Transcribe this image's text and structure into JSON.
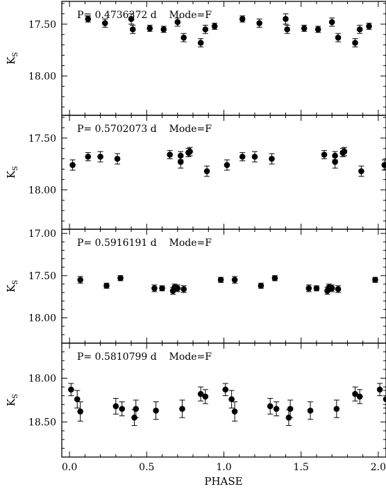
{
  "chart_data": [
    {
      "type": "scatter",
      "annotation": "P= 0.4736372 d    Mode=F",
      "ylabel": "K",
      "ylabel_sub": "S",
      "ylim": [
        18.38,
        17.28
      ],
      "yticks": [
        17.5,
        18.0
      ],
      "ytick_labels": [
        "17.50",
        "18.00"
      ],
      "xlim": [
        -0.05,
        2.05
      ],
      "phase": [
        0.12,
        0.23,
        0.4,
        0.41,
        0.52,
        0.61,
        0.7,
        0.74,
        0.85,
        0.88,
        0.94,
        1.12,
        1.23,
        1.4,
        1.41,
        1.52,
        1.61,
        1.7,
        1.74,
        1.85,
        1.88,
        1.94
      ],
      "values": [
        17.45,
        17.49,
        17.45,
        17.55,
        17.54,
        17.55,
        17.48,
        17.63,
        17.68,
        17.55,
        17.52,
        17.45,
        17.49,
        17.45,
        17.55,
        17.54,
        17.55,
        17.48,
        17.63,
        17.68,
        17.55,
        17.52
      ],
      "errors": [
        0.03,
        0.04,
        0.05,
        0.04,
        0.03,
        0.03,
        0.04,
        0.04,
        0.04,
        0.04,
        0.03,
        0.03,
        0.04,
        0.05,
        0.04,
        0.03,
        0.03,
        0.04,
        0.04,
        0.04,
        0.04,
        0.03
      ]
    },
    {
      "type": "scatter",
      "annotation": "P= 0.5702073 d    Mode=F",
      "ylabel": "K",
      "ylabel_sub": "S",
      "ylim": [
        18.38,
        17.28
      ],
      "yticks": [
        17.5,
        18.0
      ],
      "ytick_labels": [
        "17.50",
        "18.00"
      ],
      "xlim": [
        -0.05,
        2.05
      ],
      "phase": [
        0.02,
        0.12,
        0.2,
        0.31,
        0.65,
        0.72,
        0.72,
        0.77,
        0.78,
        0.89,
        1.02,
        1.12,
        1.2,
        1.31,
        1.65,
        1.72,
        1.72,
        1.77,
        1.78,
        1.89,
        2.04
      ],
      "values": [
        17.76,
        17.68,
        17.68,
        17.7,
        17.66,
        17.73,
        17.67,
        17.64,
        17.63,
        17.82,
        17.76,
        17.68,
        17.68,
        17.7,
        17.66,
        17.73,
        17.67,
        17.64,
        17.63,
        17.82,
        17.76
      ],
      "errors": [
        0.05,
        0.04,
        0.05,
        0.05,
        0.04,
        0.06,
        0.04,
        0.04,
        0.04,
        0.05,
        0.05,
        0.04,
        0.05,
        0.05,
        0.04,
        0.06,
        0.04,
        0.04,
        0.04,
        0.05,
        0.05
      ]
    },
    {
      "type": "scatter",
      "annotation": "P= 0.5916191 d    Mode=F",
      "ylabel": "K",
      "ylabel_sub": "S",
      "ylim": [
        18.3,
        16.95
      ],
      "yticks": [
        17.0,
        17.5,
        18.0
      ],
      "ytick_labels": [
        "17.00",
        "17.50",
        "18.00"
      ],
      "xlim": [
        -0.05,
        2.05
      ],
      "phase": [
        0.07,
        0.24,
        0.33,
        0.55,
        0.6,
        0.67,
        0.68,
        0.7,
        0.74,
        0.98,
        1.07,
        1.24,
        1.33,
        1.55,
        1.6,
        1.67,
        1.68,
        1.7,
        1.74,
        1.98
      ],
      "values": [
        17.55,
        17.62,
        17.53,
        17.65,
        17.65,
        17.68,
        17.64,
        17.65,
        17.66,
        17.55,
        17.55,
        17.62,
        17.53,
        17.65,
        17.65,
        17.68,
        17.64,
        17.65,
        17.66,
        17.55
      ],
      "errors": [
        0.04,
        0.03,
        0.03,
        0.04,
        0.03,
        0.04,
        0.04,
        0.04,
        0.04,
        0.03,
        0.04,
        0.03,
        0.03,
        0.04,
        0.03,
        0.04,
        0.04,
        0.04,
        0.04,
        0.03
      ]
    },
    {
      "type": "scatter",
      "annotation": "P= 0.5810799 d    Mode=F",
      "ylabel": "K",
      "ylabel_sub": "S",
      "ylim": [
        18.9,
        17.6
      ],
      "yticks": [
        18.0,
        18.5
      ],
      "ytick_labels": [
        "18.00",
        "18.50"
      ],
      "xlim": [
        -0.05,
        2.05
      ],
      "phase": [
        0.01,
        0.05,
        0.07,
        0.3,
        0.34,
        0.42,
        0.43,
        0.56,
        0.73,
        0.85,
        0.88,
        1.01,
        1.05,
        1.07,
        1.3,
        1.34,
        1.42,
        1.43,
        1.56,
        1.73,
        1.85,
        1.88,
        2.01,
        2.05
      ],
      "values": [
        18.13,
        18.24,
        18.38,
        18.32,
        18.35,
        18.45,
        18.35,
        18.37,
        18.35,
        18.18,
        18.21,
        18.13,
        18.24,
        18.38,
        18.32,
        18.35,
        18.45,
        18.35,
        18.37,
        18.35,
        18.18,
        18.21,
        18.13,
        18.24
      ],
      "errors": [
        0.07,
        0.1,
        0.11,
        0.09,
        0.08,
        0.09,
        0.1,
        0.1,
        0.1,
        0.08,
        0.08,
        0.07,
        0.1,
        0.11,
        0.09,
        0.08,
        0.09,
        0.1,
        0.1,
        0.1,
        0.08,
        0.08,
        0.07,
        0.1
      ]
    }
  ],
  "xaxis": {
    "label": "PHASE",
    "ticks": [
      0,
      0.5,
      1,
      1.5,
      2
    ],
    "tick_labels": [
      "0.0",
      "0.5",
      "1.0",
      "1.5",
      "2.0"
    ]
  }
}
